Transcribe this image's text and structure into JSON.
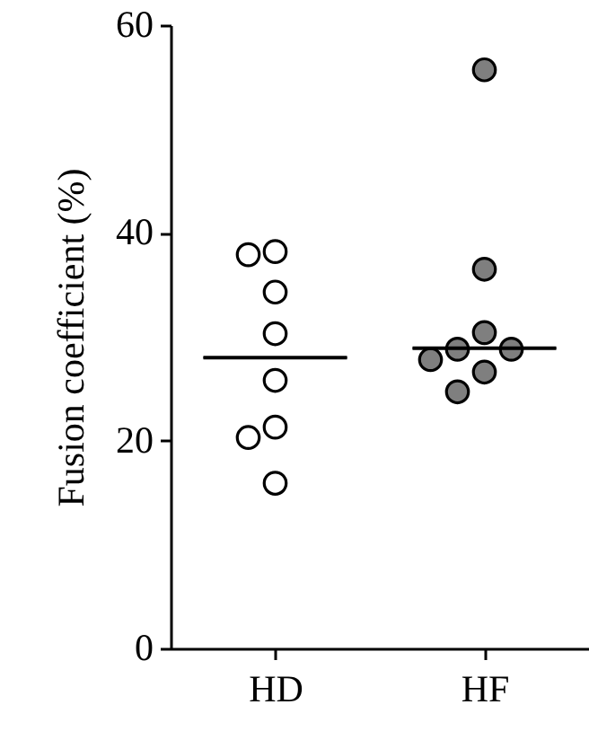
{
  "chart_data": {
    "type": "scatter",
    "ylabel": "Fusion coefficient (%)",
    "categories": [
      "HD",
      "HF"
    ],
    "ylim": [
      0,
      60
    ],
    "yticks": [
      0,
      20,
      40,
      60
    ],
    "marker": "circle",
    "series": [
      {
        "color": "#ffffff",
        "x": [
          "HD",
          "HD",
          "HD",
          "HD",
          "HD",
          "HD",
          "HD",
          "HD"
        ],
        "values": [
          38.2,
          37.9,
          34.3,
          30.3,
          25.8,
          21.3,
          20.3,
          15.9
        ]
      },
      {
        "color": "#7f7f7f",
        "x": [
          "HF",
          "HF",
          "HF",
          "HF",
          "HF",
          "HF",
          "HF",
          "HF"
        ],
        "values": [
          55.7,
          36.5,
          30.4,
          28.8,
          28.8,
          27.8,
          26.6,
          24.7
        ]
      },
      {
        "type": "box",
        "color": "#000000",
        "boxes": [
          {
            "low": 28.0,
            "q1": 28.0,
            "median": 28.0,
            "q3": 28.0,
            "high": 28.0
          },
          {
            "low": 28.9,
            "q1": 28.9,
            "median": 28.9,
            "q3": 28.9,
            "high": 28.9
          }
        ]
      }
    ]
  }
}
